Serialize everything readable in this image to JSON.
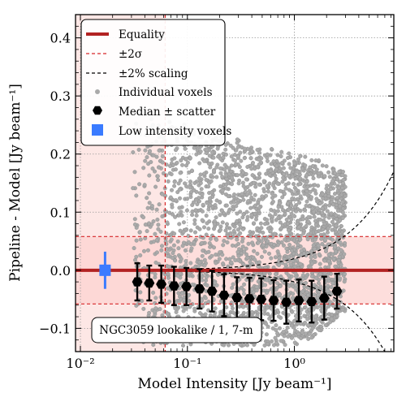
{
  "chart_data": {
    "type": "scatter",
    "xlabel": "Model Intensity [Jy beam⁻¹]",
    "ylabel": "Pipeline - Model [Jy beam⁻¹]",
    "xscale": "log",
    "xlim": [
      0.009,
      8.5
    ],
    "ylim": [
      -0.14,
      0.44
    ],
    "x_ticks": [
      {
        "value": 0.01,
        "label": "10⁻²"
      },
      {
        "value": 0.1,
        "label": "10⁻¹"
      },
      {
        "value": 1.0,
        "label": "10⁰"
      }
    ],
    "y_ticks": [
      {
        "value": -0.1,
        "label": "−0.1"
      },
      {
        "value": 0.0,
        "label": "0.0"
      },
      {
        "value": 0.1,
        "label": "0.1"
      },
      {
        "value": 0.2,
        "label": "0.2"
      },
      {
        "value": 0.3,
        "label": "0.3"
      },
      {
        "value": 0.4,
        "label": "0.4"
      }
    ],
    "grid": true,
    "legend_position": "upper-left",
    "annotation": "NGC3059 lookalike / 1, 7-m",
    "sigma": 0.058,
    "low_intensity_threshold": 0.062,
    "scaling_fraction": 0.02,
    "voxel_cloud": {
      "x_range": [
        0.03,
        3.0
      ],
      "y_range": [
        -0.13,
        0.27
      ]
    },
    "series": [
      {
        "name": "Equality",
        "style": "solid",
        "color": "#b22222"
      },
      {
        "name": "±2σ",
        "style": "dashed",
        "color": "#d62728"
      },
      {
        "name": "±2% scaling",
        "style": "dashed",
        "color": "#000000"
      },
      {
        "name": "Individual voxels",
        "style": "point",
        "color": "#aaaaaa"
      },
      {
        "name": "Median ± scatter",
        "style": "hexagon",
        "color": "#000000",
        "x": [
          0.034,
          0.044,
          0.057,
          0.075,
          0.098,
          0.13,
          0.17,
          0.22,
          0.29,
          0.38,
          0.49,
          0.64,
          0.84,
          1.1,
          1.45,
          1.9,
          2.5
        ],
        "y": [
          -0.02,
          -0.022,
          -0.024,
          -0.027,
          -0.028,
          -0.032,
          -0.036,
          -0.043,
          -0.047,
          -0.049,
          -0.05,
          -0.052,
          -0.055,
          -0.052,
          -0.054,
          -0.048,
          -0.036
        ],
        "err": [
          0.032,
          0.03,
          0.032,
          0.033,
          0.032,
          0.034,
          0.035,
          0.036,
          0.035,
          0.036,
          0.036,
          0.035,
          0.037,
          0.036,
          0.036,
          0.037,
          0.03
        ]
      },
      {
        "name": "Low intensity voxels",
        "style": "square",
        "color": "#3a7bff",
        "x": [
          0.017
        ],
        "y": [
          0.0
        ],
        "err": [
          0.032
        ]
      }
    ]
  },
  "colors": {
    "equality": "#b22222",
    "sigma_band": "#fcd3d0",
    "low_region": "#fce1de",
    "voxels": "#aaaaaa",
    "median": "#000000",
    "low_intensity": "#3a7bff"
  }
}
